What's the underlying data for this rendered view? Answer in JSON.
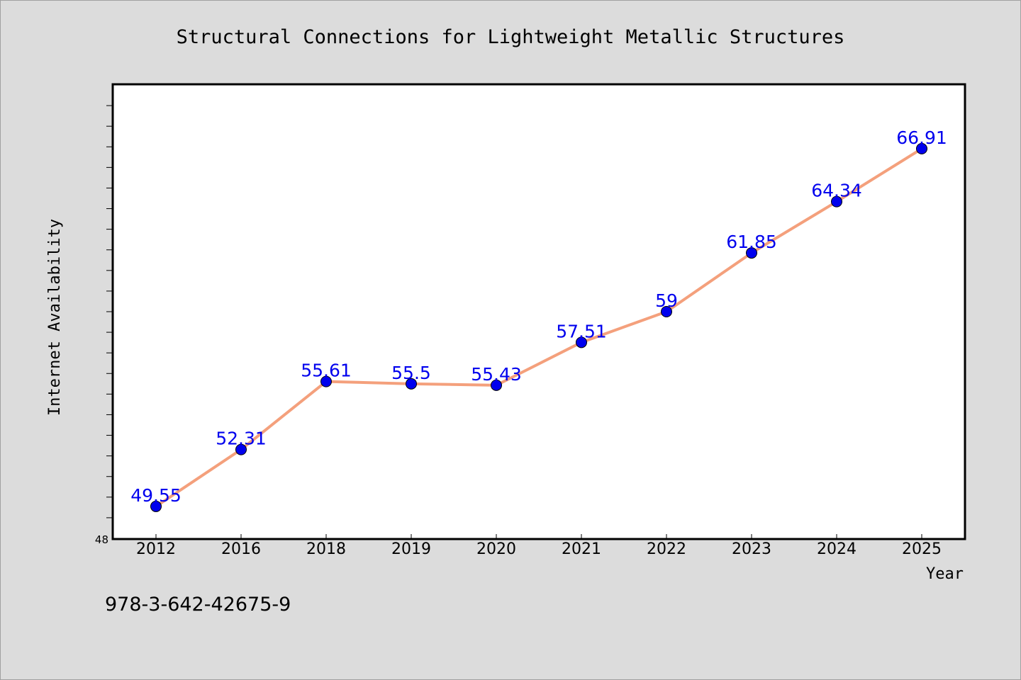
{
  "chart_data": {
    "type": "line",
    "title": "Structural Connections for Lightweight Metallic Structures",
    "xlabel": "Year",
    "ylabel": "Internet Availability",
    "categories": [
      "2012",
      "2016",
      "2018",
      "2019",
      "2020",
      "2021",
      "2022",
      "2023",
      "2024",
      "2025"
    ],
    "series": [
      {
        "values": [
          49.55,
          52.31,
          55.61,
          55.5,
          55.43,
          57.51,
          59,
          61.85,
          64.34,
          66.91
        ],
        "labels": [
          "49.55",
          "52.31",
          "55.61",
          "55.5",
          "55.43",
          "57.51",
          "59",
          "61.85",
          "64.34",
          "66.91"
        ],
        "line_color": "#f4a07c",
        "marker_color": "#0000ee"
      }
    ],
    "ylim": [
      48,
      70
    ],
    "y_min_label": "48",
    "grid": false,
    "label_color": "#0000ee"
  },
  "footnote": "978-3-642-42675-9",
  "colors": {
    "background": "#dcdcdc",
    "plot_background": "#ffffff",
    "axis": "#000000"
  }
}
